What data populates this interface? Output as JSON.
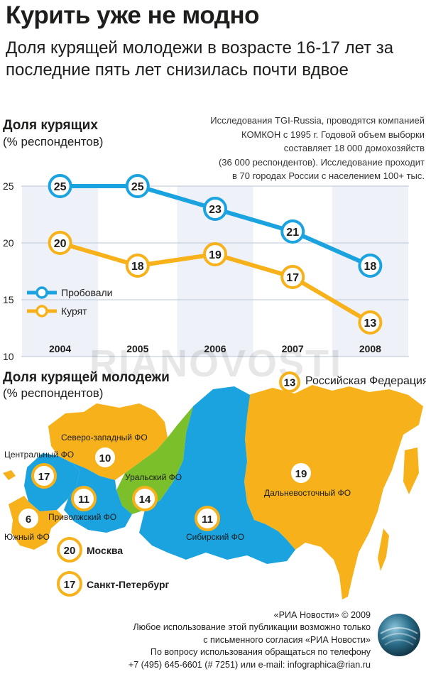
{
  "header": {
    "title": "Курить уже не модно",
    "subtitle": "Доля курящей молодежи в возрасте 16-17 лет за последние пять лет снизилась почти вдвое"
  },
  "section1": {
    "title": "Доля курящих",
    "units": "(% респондентов)"
  },
  "note": {
    "lines": [
      "Исследования TGI-Russia, проводятся компанией",
      "КОМКОН с 1995 г. Годовой объем выборки",
      "составляет 18 000 домохозяйств",
      "(36 000 респондентов). Исследование проходит",
      "в 70 городах России с населением 100+ тыс."
    ]
  },
  "chart_data": {
    "type": "line",
    "x": [
      "2004",
      "2005",
      "2006",
      "2007",
      "2008"
    ],
    "ylim": [
      10,
      25
    ],
    "yticks": [
      10,
      15,
      20,
      25
    ],
    "legend_position": "left",
    "series": [
      {
        "name": "Пробовали",
        "color": "#1ba3e0",
        "values": [
          25,
          25,
          23,
          21,
          18
        ]
      },
      {
        "name": "Курят",
        "color": "#f7b21b",
        "values": [
          20,
          18,
          19,
          17,
          13
        ]
      }
    ]
  },
  "watermark": "RIANOVOSTI",
  "section2": {
    "title": "Доля курящей молодежи",
    "units": "(% респондентов)",
    "rf_value": "13",
    "rf_label": "Российская Федерация"
  },
  "map": {
    "regions": [
      {
        "label": "Северо-западный ФО",
        "value": "10",
        "color": "#f7b21b"
      },
      {
        "label": "Центральный ФО",
        "value": "17",
        "color": "#1ba3e0"
      },
      {
        "label": "Уральский ФО",
        "value": "14",
        "color": "#7bbf2a"
      },
      {
        "label": "Приволжский ФО",
        "value": "11",
        "color": "#1ba3e0"
      },
      {
        "label": "Южный ФО",
        "value": "6",
        "color": "#f7b21b"
      },
      {
        "label": "Сибирский ФО",
        "value": "11",
        "color": "#1ba3e0"
      },
      {
        "label": "Дальневосточный ФО",
        "value": "19",
        "color": "#f7b21b"
      }
    ],
    "cities": [
      {
        "label": "Москва",
        "value": "20"
      },
      {
        "label": "Санкт-Петербург",
        "value": "17"
      }
    ]
  },
  "footer": {
    "lines": [
      "«РИА Новости» © 2009",
      "Любое использование этой публикации возможно только",
      "с письменного согласия «РИА Новости»",
      "По вопросу использования обращаться по телефону",
      "+7 (495) 645-6601 (# 7251) или e-mail: infographica@rian.ru"
    ]
  }
}
